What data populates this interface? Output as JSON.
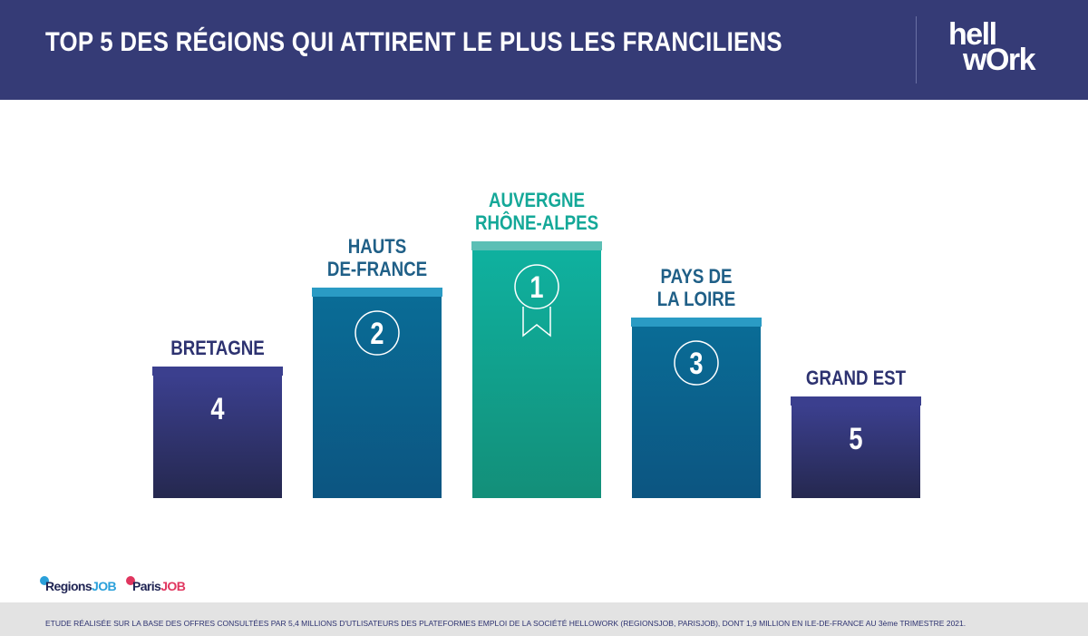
{
  "header": {
    "title": "TOP 5 DES RÉGIONS QUI ATTIRENT LE PLUS LES FRANCILIENS",
    "logo_line1": "hell",
    "logo_line2": "wOrk"
  },
  "chart_data": {
    "type": "bar",
    "categories": [
      "BRETAGNE",
      "HAUTS DE-FRANCE",
      "AUVERGNE RHÔNE-ALPES",
      "PAYS DE LA LOIRE",
      "GRAND EST"
    ],
    "ranks": [
      "4",
      "2",
      "1",
      "3",
      "5"
    ],
    "label_lines": [
      [
        "BRETAGNE"
      ],
      [
        "HAUTS",
        "DE-FRANCE"
      ],
      [
        "AUVERGNE",
        "RHÔNE-ALPES"
      ],
      [
        "PAYS DE",
        "LA LOIRE"
      ],
      [
        "GRAND EST"
      ]
    ],
    "values": [
      4,
      2,
      1,
      3,
      5
    ],
    "heights_rel": [
      0.45,
      0.74,
      0.91,
      0.63,
      0.34
    ],
    "colors": {
      "navy_top": "#3b3f8e",
      "teal_top": "#2a9bc4",
      "green_top": "#5cbfb5",
      "navy_label": "#2d3270",
      "teal_label": "#1f5f87",
      "green_label": "#14a898"
    }
  },
  "footer": {
    "brand1_a": "Regions",
    "brand1_b": "JOB",
    "brand2_a": "Paris",
    "brand2_b": "JOB",
    "note": "ETUDE RÉALISÉE SUR LA BASE DES OFFRES CONSULTÉES PAR 5,4 MILLIONS D'UTLISATEURS DES PLATEFORMES EMPLOI DE LA SOCIÉTÉ HELLOWORK (REGIONSJOB, PARISJOB), DONT 1,9 MILLION EN ILE-DE-FRANCE AU 3ème TRIMESTRE 2021."
  }
}
